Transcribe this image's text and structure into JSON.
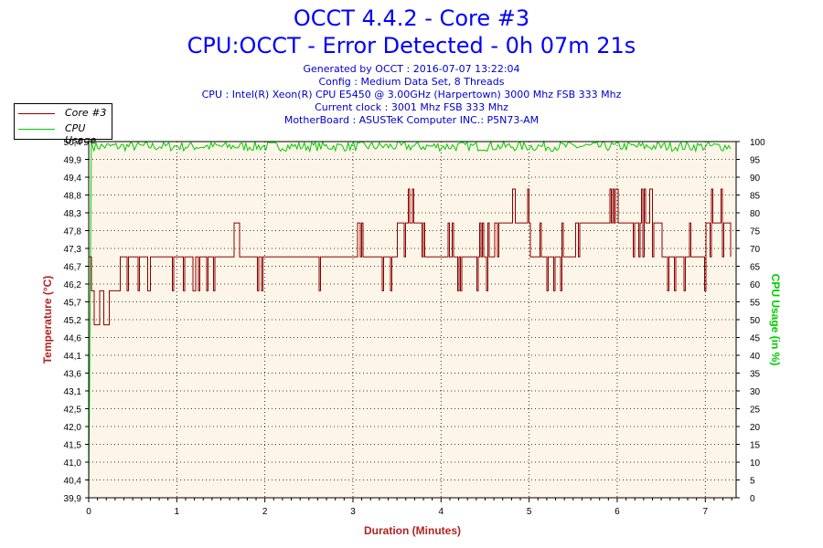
{
  "chart_data": {
    "type": "line",
    "title": "OCCT 4.4.2 - Core #3",
    "subtitle": "CPU:OCCT - Error Detected - 0h 07m 21s",
    "info_lines": [
      "Generated by OCCT : 2016-07-07 13:22:04",
      "Config : Medium Data Set, 8 Threads",
      "CPU : Intel(R) Xeon(R) CPU E5450 @ 3.00GHz (Harpertown) 3000 Mhz FSB 333 Mhz",
      "Current clock : 3001 Mhz FSB 333 Mhz",
      "MotherBoard : ASUSTeK Computer INC.: P5N73-AM"
    ],
    "xlabel": "Duration (Minutes)",
    "ylabel_left": "Temperature (°C)",
    "ylabel_right": "CPU Usage (in %)",
    "xlim": [
      0,
      7.35
    ],
    "ylim_left": [
      39.9,
      50.4
    ],
    "ylim_right": [
      0,
      100
    ],
    "x_ticks": [
      "0",
      "1",
      "2",
      "3",
      "4",
      "5",
      "6",
      "7"
    ],
    "y_left_ticks": [
      "39,9",
      "40,4",
      "41,0",
      "41,5",
      "42,0",
      "42,5",
      "43,1",
      "43,6",
      "44,1",
      "44,6",
      "45,2",
      "45,7",
      "46,2",
      "46,7",
      "47,3",
      "47,8",
      "48,3",
      "48,8",
      "49,4",
      "49,9",
      "50,4"
    ],
    "y_right_ticks": [
      "0",
      "5",
      "10",
      "15",
      "20",
      "25",
      "30",
      "35",
      "40",
      "45",
      "50",
      "55",
      "60",
      "65",
      "70",
      "75",
      "80",
      "85",
      "90",
      "95",
      "100"
    ],
    "grid": true,
    "legend_position": "top-left",
    "series": [
      {
        "name": "Core #3",
        "color": "#8b0000",
        "axis": "left",
        "levels": [
          45,
          46,
          47,
          48
        ],
        "points": [
          [
            0.0,
            47
          ],
          [
            0.02,
            46
          ],
          [
            0.05,
            45
          ],
          [
            0.12,
            46
          ],
          [
            0.16,
            45
          ],
          [
            0.22,
            46
          ],
          [
            0.3,
            46
          ],
          [
            0.35,
            47
          ],
          [
            0.6,
            47
          ],
          [
            0.9,
            47
          ],
          [
            1.3,
            47
          ],
          [
            1.65,
            48
          ],
          [
            1.7,
            47
          ],
          [
            2.0,
            47
          ],
          [
            2.5,
            47
          ],
          [
            3.05,
            48
          ],
          [
            3.1,
            47
          ],
          [
            3.5,
            48
          ],
          [
            3.8,
            47
          ],
          [
            4.2,
            47
          ],
          [
            4.5,
            47
          ],
          [
            4.6,
            48
          ],
          [
            5.0,
            47
          ],
          [
            5.5,
            48
          ],
          [
            6.0,
            48
          ],
          [
            6.5,
            47
          ],
          [
            7.0,
            48
          ],
          [
            7.3,
            47
          ]
        ]
      },
      {
        "name": "CPU Usage",
        "color": "#00cc00",
        "axis": "right",
        "points": [
          [
            0.0,
            0
          ],
          [
            0.03,
            100
          ],
          [
            0.06,
            98
          ],
          [
            1.0,
            99
          ],
          [
            2.0,
            99
          ],
          [
            3.0,
            99
          ],
          [
            4.0,
            99
          ],
          [
            5.0,
            99
          ],
          [
            6.0,
            99
          ],
          [
            7.0,
            99
          ],
          [
            7.3,
            99
          ]
        ]
      }
    ]
  },
  "colors": {
    "title": "#0000ff",
    "info": "#0000cc",
    "temperature_axis": "#b22222",
    "cpu_axis": "#00cc00",
    "plot_background": "#fdf5e8"
  }
}
